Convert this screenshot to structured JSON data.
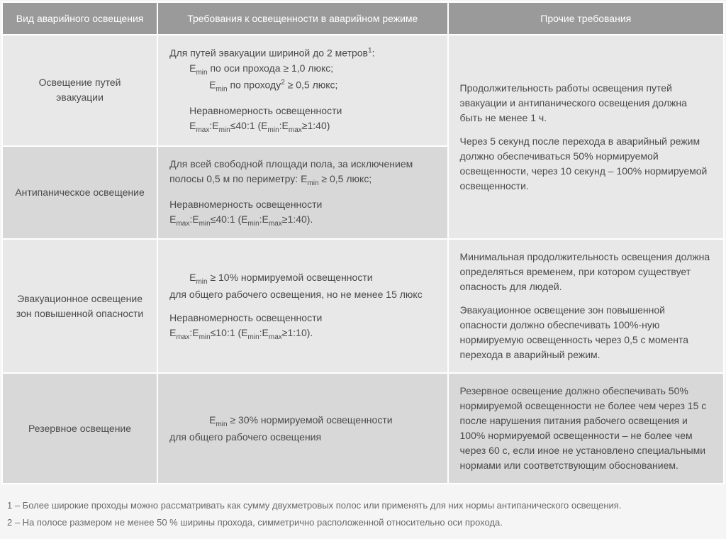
{
  "table": {
    "headers": {
      "col1": "Вид аварийного освещения",
      "col2": "Требования к освещенности в аварийном режиме",
      "col3": "Прочие требования"
    },
    "rows": {
      "r1": {
        "col1": "Освещение путей эвакуации",
        "col2": {
          "line1_pre": "Для путей эвакуации шириной до 2 метров",
          "line1_sup": "1",
          "line1_post": ":",
          "line2_pre": "E",
          "line2_sub": "min",
          "line2_post": " по оси прохода ≥ 1,0 люкс;",
          "line3_pre": "E",
          "line3_sub": "min",
          "line3_mid": " по проходу",
          "line3_sup": "2",
          "line3_post": " ≥ 0,5 люкс;",
          "line4": "Неравномерность освещенности",
          "line5_a": "E",
          "line5_a_sub": "max",
          "line5_b": ":E",
          "line5_b_sub": "min",
          "line5_c": "≤40:1 (E",
          "line5_c_sub": "min",
          "line5_d": ":E",
          "line5_d_sub": "max",
          "line5_e": "≥1:40)"
        }
      },
      "r2": {
        "col1": "Антипаническое освещение",
        "col2": {
          "line1_a": "Для всей свободной площади пола, за исключением полосы 0,5 м по периметру: E",
          "line1_sub": "min",
          "line1_b": " ≥ 0,5 люкс;",
          "line2": "Неравномерность освещенности",
          "line3_a": "E",
          "line3_a_sub": "max",
          "line3_b": ":E",
          "line3_b_sub": "min",
          "line3_c": "≤40:1 (E",
          "line3_c_sub": "min",
          "line3_d": ":E",
          "line3_d_sub": "max",
          "line3_e": "≥1:40)."
        }
      },
      "r12_col3": {
        "p1": "Продолжительность работы освещения путей эвакуации и антипанического освещения должна быть не менее 1 ч.",
        "p2": "Через 5 секунд после перехода в аварийный режим должно обеспечиваться 50% нормируемой освещенности, через 10 секунд – 100% нормируемой освещенности."
      },
      "r3": {
        "col1": "Эвакуационное освещение зон повышенной опасности",
        "col2": {
          "line1_a": "E",
          "line1_sub": "min",
          "line1_b": " ≥ 10% нормируемой освещенности",
          "line2": "для общего рабочего освещения, но не менее 15 люкс",
          "line3": "Неравномерность освещенности",
          "line4_a": "E",
          "line4_a_sub": "max",
          "line4_b": ":E",
          "line4_b_sub": "min",
          "line4_c": "≤10:1 (E",
          "line4_c_sub": "min",
          "line4_d": ":E",
          "line4_d_sub": "max",
          "line4_e": "≥1:10)."
        },
        "col3": {
          "p1": "Минимальная продолжительность освещения должна определяться временем, при котором существует опасность для людей.",
          "p2": "Эвакуационное освещение зон повышенной опасности должно обеспечивать 100%-ную нормируемую освещенность через 0,5 с момента перехода в аварийный режим."
        }
      },
      "r4": {
        "col1": "Резервное освещение",
        "col2": {
          "line1_a": "E",
          "line1_sub": "min",
          "line1_b": " ≥ 30% нормируемой освещенности",
          "line2": "для общего рабочего освещения"
        },
        "col3": "Резервное освещение должно обеспечивать 50% нормируемой освещенности не более чем через 15 с после нарушения питания рабочего освещения и 100% нормируемой освещенности – не более чем через 60 с, если иное не установлено специальными нормами или соответствующим обоснованием."
      }
    }
  },
  "footnotes": {
    "f1": "1 – Более широкие проходы можно рассматривать как сумму двухметровых полос или применять для них нормы антипанического освещения.",
    "f2": "2 – На полосе размером не менее 50 % ширины прохода, симметрично расположенной относительно оси прохода."
  },
  "style": {
    "header_bg": "#9a9a9a",
    "header_text": "#ffffff",
    "row_light_bg": "#e8e8e8",
    "row_dark_bg": "#d8d8d8",
    "body_text": "#4a4a4a",
    "footnote_text": "#6a6a6a",
    "page_bg": "#f5f5f5",
    "font_size_body": 14,
    "font_size_footnote": 13,
    "font_size_sub": 10
  }
}
